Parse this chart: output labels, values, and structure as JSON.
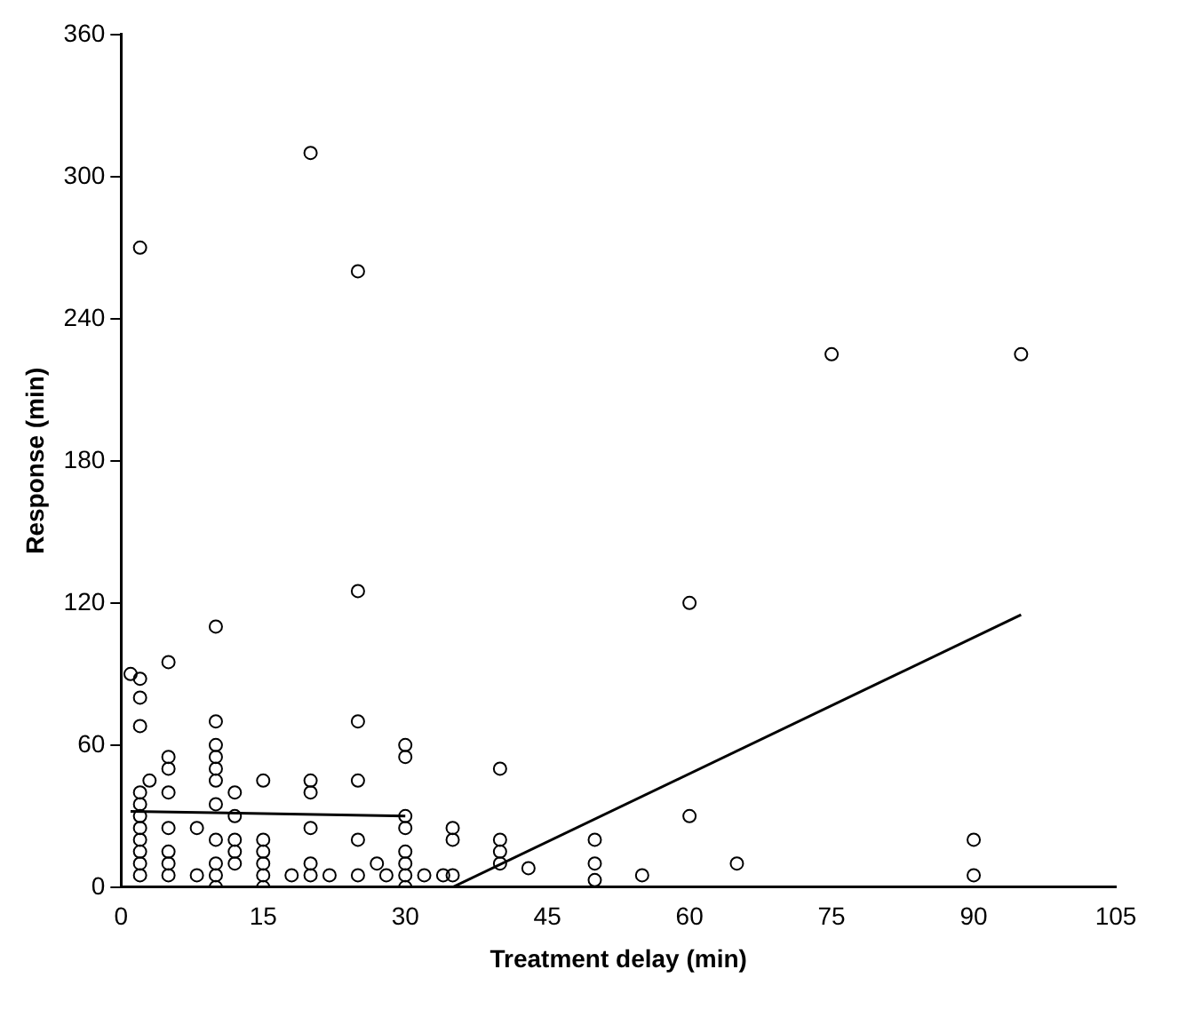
{
  "chart_data": {
    "type": "scatter",
    "xlabel": "Treatment delay (min)",
    "ylabel": "Response (min)",
    "xlim": [
      0,
      105
    ],
    "xticks": [
      0,
      15,
      30,
      45,
      60,
      75,
      90,
      105
    ],
    "ylim": [
      0,
      360
    ],
    "yticks": [
      0,
      60,
      120,
      180,
      240,
      300,
      360
    ],
    "grid": false,
    "legend": false,
    "marker": "circle",
    "series": [
      {
        "color": "#000000",
        "x": [
          1,
          2,
          2,
          2,
          2,
          2,
          2,
          2,
          2,
          2,
          2,
          2,
          2,
          3,
          5,
          5,
          5,
          5,
          5,
          5,
          5,
          5,
          8,
          8,
          10,
          10,
          10,
          10,
          10,
          10,
          10,
          10,
          10,
          10,
          10,
          12,
          12,
          12,
          12,
          12,
          15,
          15,
          15,
          15,
          15,
          15,
          18,
          20,
          20,
          20,
          20,
          20,
          20,
          22,
          25,
          25,
          25,
          25,
          25,
          25,
          27,
          28,
          30,
          30,
          30,
          30,
          30,
          30,
          30,
          30,
          32,
          34,
          35,
          35,
          35,
          40,
          40,
          40,
          40,
          43,
          50,
          50,
          50,
          55,
          60,
          60,
          65,
          75,
          90,
          90,
          95
        ],
        "values": [
          90,
          270,
          88,
          80,
          68,
          40,
          35,
          30,
          25,
          20,
          15,
          10,
          5,
          45,
          95,
          55,
          50,
          40,
          25,
          15,
          10,
          5,
          25,
          5,
          110,
          70,
          60,
          55,
          50,
          45,
          35,
          20,
          10,
          5,
          0,
          40,
          30,
          20,
          15,
          10,
          45,
          20,
          15,
          10,
          5,
          0,
          5,
          310,
          45,
          40,
          25,
          10,
          5,
          5,
          260,
          125,
          70,
          45,
          20,
          5,
          10,
          5,
          60,
          55,
          30,
          25,
          15,
          10,
          5,
          0,
          5,
          5,
          25,
          20,
          5,
          50,
          20,
          15,
          10,
          8,
          20,
          10,
          3,
          5,
          120,
          30,
          10,
          225,
          20,
          5,
          225
        ]
      },
      {
        "type": "line",
        "marker": "none",
        "color": "#000000",
        "x": [
          1,
          30
        ],
        "values": [
          32,
          30
        ]
      },
      {
        "type": "line",
        "marker": "none",
        "color": "#000000",
        "x": [
          35,
          95
        ],
        "values": [
          0,
          115
        ]
      }
    ]
  }
}
